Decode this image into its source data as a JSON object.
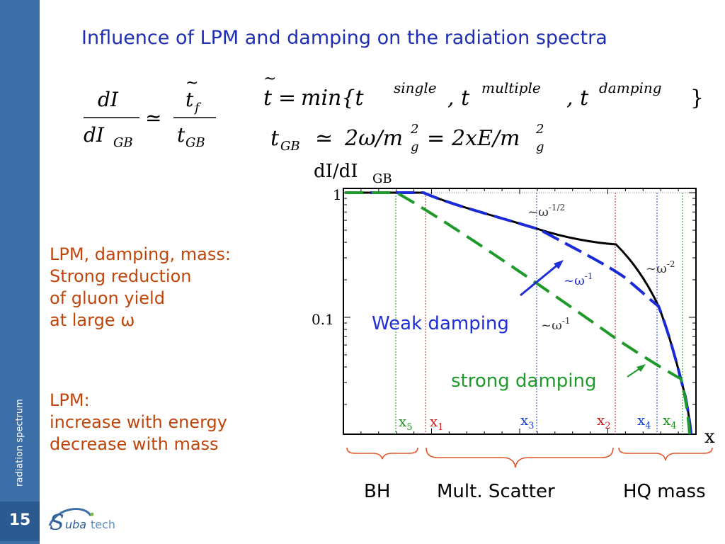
{
  "sidebar": {
    "label": "radiation spectrum",
    "page_number": "15",
    "logo": {
      "prefix": "S",
      "middle": "uba",
      "suffix": "tech"
    }
  },
  "slide": {
    "title": "Influence of LPM and damping on the radiation spectra",
    "formulas": {
      "ratio": {
        "lhs_num": "dI",
        "lhs_den": "dI",
        "lhs_den_sub": "GB",
        "rel": "≃",
        "rhs_num": "t",
        "rhs_num_sub": "f",
        "rhs_den": "t",
        "rhs_den_sub": "GB"
      },
      "tmin": {
        "lhs": "t",
        "eq": "=",
        "fn": "min{t",
        "sup1": "single",
        "mid1": ", t",
        "sup2": "multiple",
        "mid2": ", t",
        "sup3": "damping",
        "end": "}"
      },
      "tgb": {
        "t": "t",
        "sub": "GB",
        "rel": "≃",
        "a": "2ω/m",
        "a_sub": "g",
        "a_sup": "2",
        "eq": "=",
        "b": "2xE/m",
        "b_sub": "g",
        "b_sup": "2"
      }
    },
    "text_block_1": [
      "LPM, damping, mass:",
      "Strong reduction",
      "of gluon yield",
      "at large ω"
    ],
    "text_block_2": [
      "LPM:",
      "increase with energy",
      "decrease with mass"
    ],
    "braces": [
      "BH",
      "Mult. Scatter",
      "HQ mass"
    ]
  },
  "chart_data": {
    "type": "line",
    "title": "",
    "ylabel": "dI/dI",
    "ylabel_sub": "GB",
    "xlabel": "x",
    "y_scale": "log",
    "y_ticks": [
      "1",
      "0.1"
    ],
    "x_markers": [
      {
        "label": "x",
        "sub": "5",
        "color": "#1a8f1a"
      },
      {
        "label": "x",
        "sub": "1",
        "color": "#d01818"
      },
      {
        "label": "x",
        "sub": "3",
        "color": "#1a3fd0"
      },
      {
        "label": "x",
        "sub": "2",
        "color": "#d01818"
      },
      {
        "label": "x",
        "sub": "4",
        "color": "#1a3fd0"
      },
      {
        "label": "x",
        "sub": "4",
        "color": "#1a8f1a"
      }
    ],
    "series": [
      {
        "color": "#000000",
        "style": "solid"
      },
      {
        "color": "#1a2ad8",
        "style": "dashed"
      },
      {
        "color": "#1f9a2a",
        "style": "dashed"
      }
    ],
    "slope_labels": [
      {
        "base": "~ω",
        "exp": "-1/2"
      },
      {
        "base": "~ω",
        "exp": "-2"
      },
      {
        "base": "~ω",
        "exp": "-1"
      },
      {
        "base": "~ω",
        "exp": "-1"
      }
    ],
    "annotations": [
      {
        "text": "Weak damping",
        "color": "#1f2fd8"
      },
      {
        "text": "strong damping",
        "color": "#1f9a2a"
      }
    ]
  }
}
